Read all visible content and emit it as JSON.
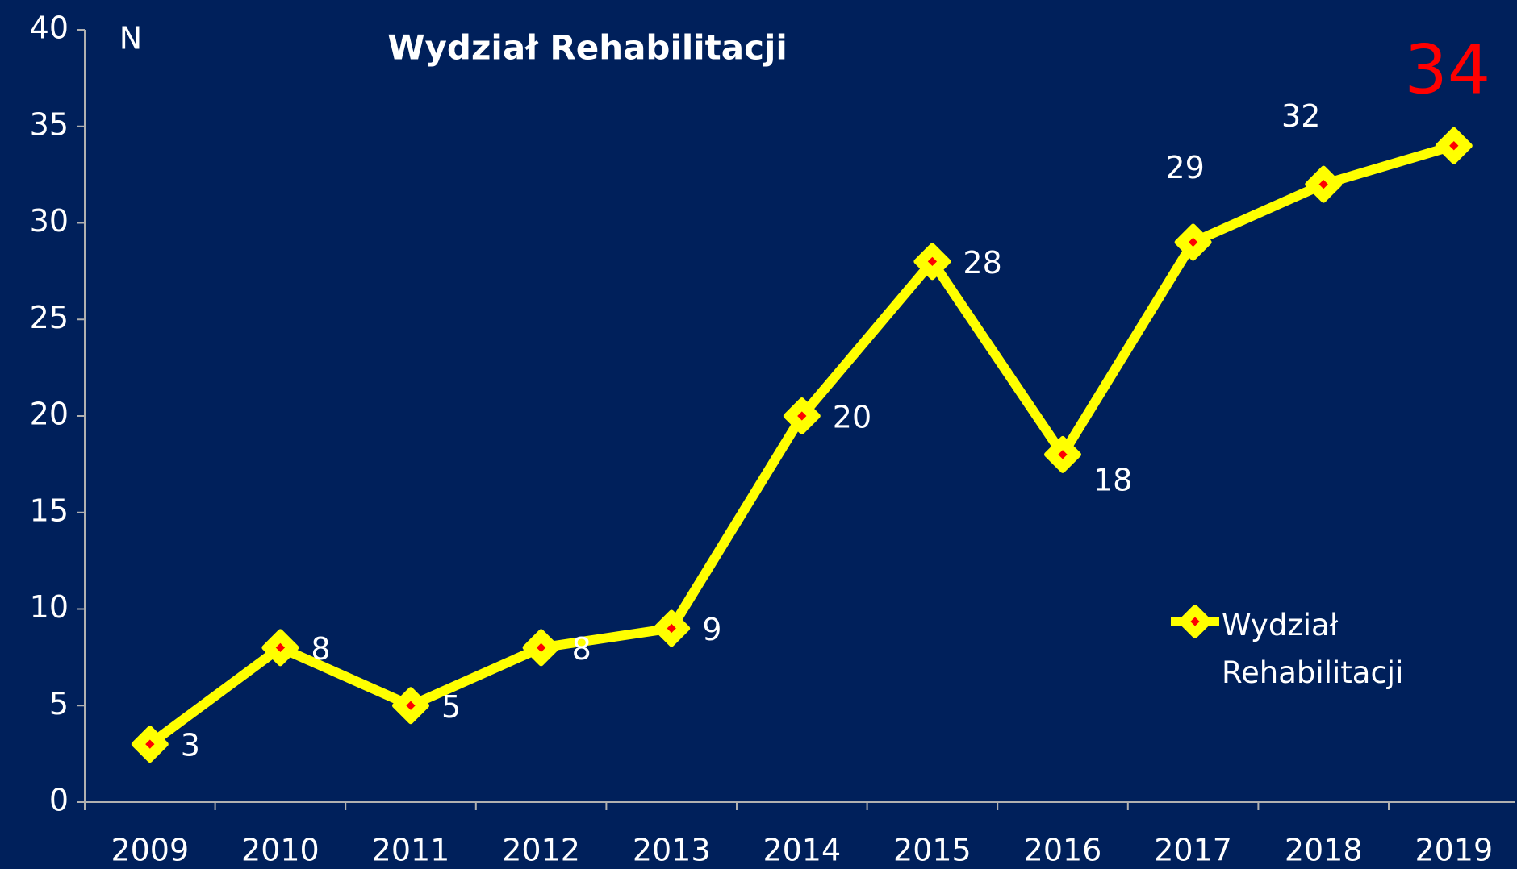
{
  "chart_data": {
    "type": "line",
    "title": "Wydział Rehabilitacji",
    "y_label": "N",
    "categories": [
      "2009",
      "2010",
      "2011",
      "2012",
      "2013",
      "2014",
      "2015",
      "2016",
      "2017",
      "2018",
      "2019"
    ],
    "series": [
      {
        "name": "Wydział Rehabilitacji",
        "color": "#ffff00",
        "marker_color": "#ff0000",
        "values": [
          3,
          8,
          5,
          8,
          9,
          20,
          28,
          18,
          29,
          32,
          34
        ]
      }
    ],
    "ylim": [
      0,
      40
    ],
    "yticks": [
      0,
      5,
      10,
      15,
      20,
      25,
      30,
      35,
      40
    ],
    "grid": false,
    "legend": "right"
  }
}
